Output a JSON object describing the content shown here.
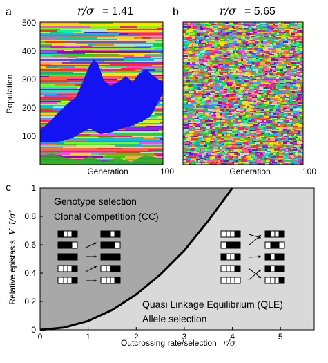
{
  "panels": {
    "a": {
      "letter": "a",
      "title_var": "r/σ",
      "title_value": "= 1.41",
      "ylabel": "Population",
      "xlabel": "Generation",
      "x_end_tick": "100",
      "y_ticks": [
        "100",
        "200",
        "300",
        "400",
        "500"
      ]
    },
    "b": {
      "letter": "b",
      "title_var": "r/σ",
      "title_value": "= 5.65",
      "xlabel": "Generation",
      "x_end_tick": "100"
    },
    "c": {
      "letter": "c",
      "region_upper_line1": "Genotype selection",
      "region_upper_line2": "Clonal Competition (CC)",
      "region_lower_line1": "Quasi Linkage Equilibrium (QLE)",
      "region_lower_line2": "Allele selection",
      "xlabel_text": "Outcrossing rate/selection",
      "xlabel_var": "r/σ",
      "ylabel_text": "Relative epistasis",
      "ylabel_var": "V_I/σ²",
      "x_ticks": [
        "0",
        "1",
        "2",
        "3",
        "4",
        "5"
      ],
      "y_ticks": [
        "0",
        "0.2",
        "0.4",
        "0.6",
        "0.8",
        "1"
      ],
      "colors": {
        "upper_region": "#a8a8a8",
        "lower_region": "#d9d9d9",
        "boundary": "#000000"
      }
    }
  },
  "chart_data": {
    "type": "area",
    "xlim": [
      0,
      5.7
    ],
    "ylim": [
      0,
      1
    ],
    "boundary_curve": {
      "x": [
        0,
        0.5,
        1.0,
        1.5,
        2.0,
        2.5,
        3.0,
        3.5,
        4.0
      ],
      "y": [
        0,
        0.016,
        0.0625,
        0.14,
        0.25,
        0.39,
        0.56,
        0.77,
        1.0
      ]
    }
  }
}
